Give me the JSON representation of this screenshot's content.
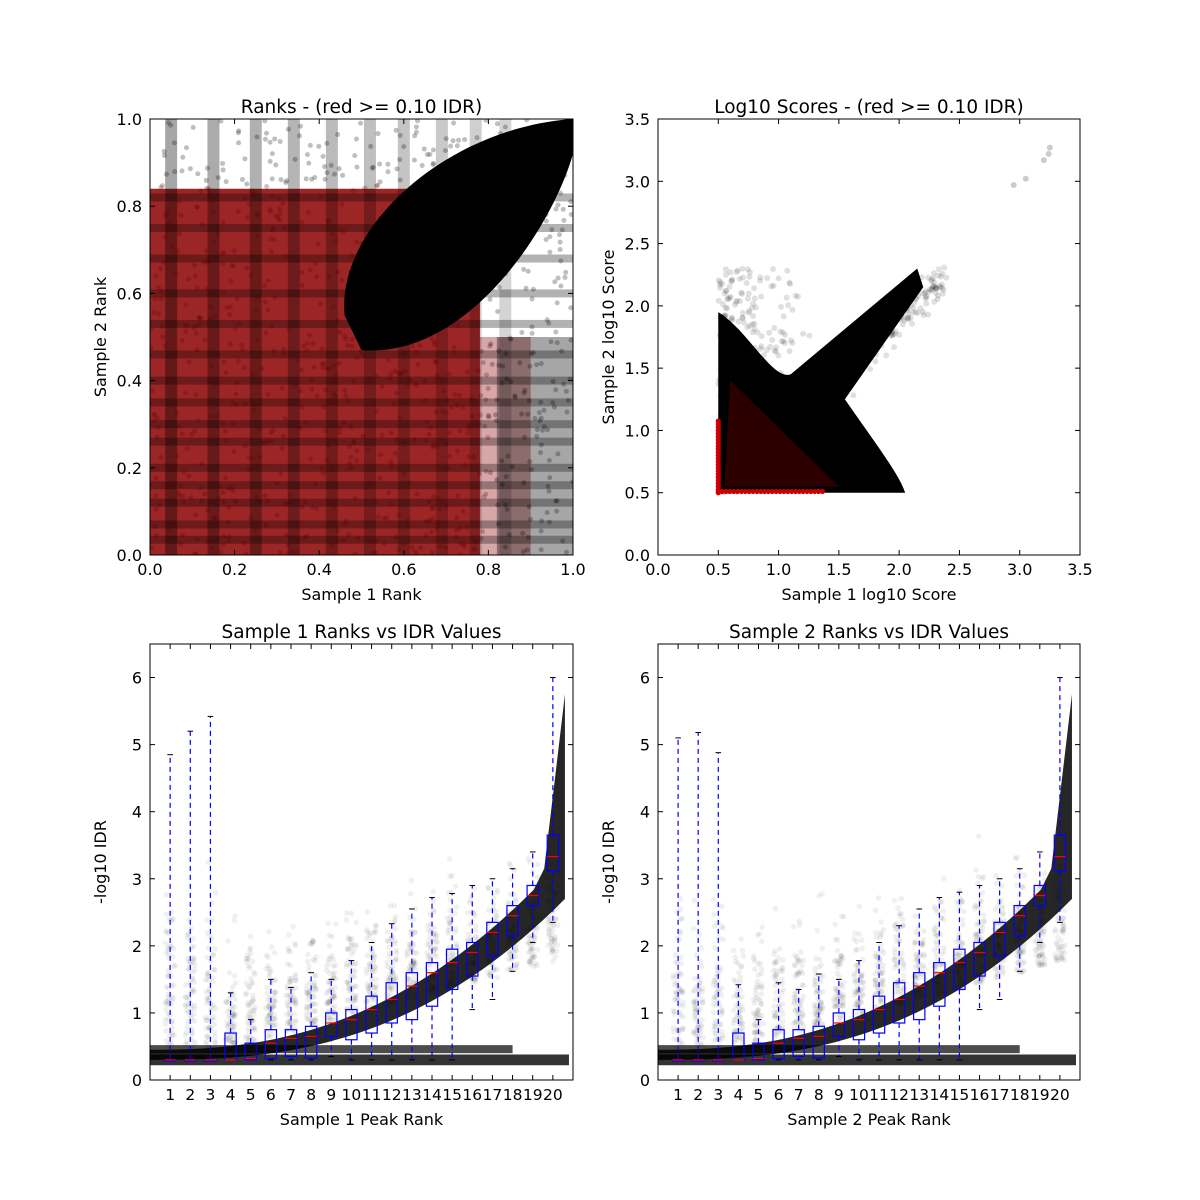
{
  "chart_data": [
    {
      "type": "scatter",
      "title": "Ranks - (red >= 0.10 IDR)",
      "xlabel": "Sample 1 Rank",
      "ylabel": "Sample 2 Rank",
      "xlim": [
        0.0,
        1.0
      ],
      "ylim": [
        0.0,
        1.0
      ],
      "xticks": [
        "0.0",
        "0.2",
        "0.4",
        "0.6",
        "0.8",
        "1.0"
      ],
      "yticks": [
        "0.0",
        "0.2",
        "0.4",
        "0.6",
        "0.8",
        "1.0"
      ],
      "colors": {
        "pass": "#000000",
        "fail": "#8b0000"
      },
      "dense_region": {
        "x": [
          0.45,
          1.0
        ],
        "y": [
          0.45,
          1.0
        ]
      }
    },
    {
      "type": "scatter",
      "title": "Log10 Scores - (red >= 0.10 IDR)",
      "xlabel": "Sample 1 log10 Score",
      "ylabel": "Sample 2 log10 Score",
      "xlim": [
        0.0,
        3.5
      ],
      "ylim": [
        0.0,
        3.5
      ],
      "xticks": [
        "0.0",
        "0.5",
        "1.0",
        "1.5",
        "2.0",
        "2.5",
        "3.0",
        "3.5"
      ],
      "yticks": [
        "0.0",
        "0.5",
        "1.0",
        "1.5",
        "2.0",
        "2.5",
        "3.0",
        "3.5"
      ],
      "colors": {
        "pass": "#000000",
        "fail": "#cc0000"
      },
      "min_score": 0.5,
      "outliers": [
        [
          2.95,
          2.97
        ],
        [
          3.05,
          3.02
        ],
        [
          3.2,
          3.17
        ],
        [
          3.24,
          3.22
        ],
        [
          3.25,
          3.27
        ]
      ]
    },
    {
      "type": "box",
      "title": "Sample 1 Ranks vs IDR Values",
      "xlabel": "Sample 1 Peak Rank",
      "ylabel": "-log10 IDR",
      "xlim": [
        0,
        21
      ],
      "ylim": [
        0,
        6.5
      ],
      "categories": [
        "1",
        "2",
        "3",
        "4",
        "5",
        "6",
        "7",
        "8",
        "9",
        "10",
        "11",
        "12",
        "13",
        "14",
        "15",
        "16",
        "17",
        "18",
        "19",
        "20"
      ],
      "yticks": [
        "0",
        "1",
        "2",
        "3",
        "4",
        "5",
        "6"
      ],
      "boxes": [
        {
          "q1": 0.3,
          "med": 0.3,
          "q3": 0.3,
          "lo": 0.3,
          "hi": 4.85
        },
        {
          "q1": 0.3,
          "med": 0.3,
          "q3": 0.3,
          "lo": 0.3,
          "hi": 5.2
        },
        {
          "q1": 0.3,
          "med": 0.3,
          "q3": 0.3,
          "lo": 0.3,
          "hi": 5.42
        },
        {
          "q1": 0.3,
          "med": 0.3,
          "q3": 0.7,
          "lo": 0.3,
          "hi": 1.3
        },
        {
          "q1": 0.3,
          "med": 0.32,
          "q3": 0.55,
          "lo": 0.3,
          "hi": 0.9
        },
        {
          "q1": 0.32,
          "med": 0.55,
          "q3": 0.75,
          "lo": 0.3,
          "hi": 1.5
        },
        {
          "q1": 0.35,
          "med": 0.62,
          "q3": 0.75,
          "lo": 0.3,
          "hi": 1.38
        },
        {
          "q1": 0.33,
          "med": 0.65,
          "q3": 0.8,
          "lo": 0.3,
          "hi": 1.6
        },
        {
          "q1": 0.65,
          "med": 0.85,
          "q3": 1.0,
          "lo": 0.35,
          "hi": 1.5
        },
        {
          "q1": 0.6,
          "med": 0.9,
          "q3": 1.05,
          "lo": 0.3,
          "hi": 1.78
        },
        {
          "q1": 0.7,
          "med": 1.05,
          "q3": 1.25,
          "lo": 0.3,
          "hi": 2.05
        },
        {
          "q1": 0.85,
          "med": 1.2,
          "q3": 1.45,
          "lo": 0.3,
          "hi": 2.33
        },
        {
          "q1": 0.9,
          "med": 1.4,
          "q3": 1.6,
          "lo": 0.3,
          "hi": 2.55
        },
        {
          "q1": 1.1,
          "med": 1.6,
          "q3": 1.75,
          "lo": 0.3,
          "hi": 2.72
        },
        {
          "q1": 1.35,
          "med": 1.75,
          "q3": 1.95,
          "lo": 0.3,
          "hi": 2.78
        },
        {
          "q1": 1.55,
          "med": 1.9,
          "q3": 2.05,
          "lo": 1.05,
          "hi": 2.9
        },
        {
          "q1": 1.85,
          "med": 2.2,
          "q3": 2.35,
          "lo": 1.2,
          "hi": 3.0
        },
        {
          "q1": 2.15,
          "med": 2.45,
          "q3": 2.6,
          "lo": 1.62,
          "hi": 3.15
        },
        {
          "q1": 2.6,
          "med": 2.75,
          "q3": 2.9,
          "lo": 2.05,
          "hi": 3.4
        },
        {
          "q1": 3.12,
          "med": 3.33,
          "q3": 3.65,
          "lo": 2.35,
          "hi": 6.0
        }
      ]
    },
    {
      "type": "box",
      "title": "Sample 2 Ranks vs IDR Values",
      "xlabel": "Sample 2 Peak Rank",
      "ylabel": "-log10 IDR",
      "xlim": [
        0,
        21
      ],
      "ylim": [
        0,
        6.5
      ],
      "categories": [
        "1",
        "2",
        "3",
        "4",
        "5",
        "6",
        "7",
        "8",
        "9",
        "10",
        "11",
        "12",
        "13",
        "14",
        "15",
        "16",
        "17",
        "18",
        "19",
        "20"
      ],
      "yticks": [
        "0",
        "1",
        "2",
        "3",
        "4",
        "5",
        "6"
      ],
      "boxes": [
        {
          "q1": 0.3,
          "med": 0.3,
          "q3": 0.3,
          "lo": 0.3,
          "hi": 5.1
        },
        {
          "q1": 0.3,
          "med": 0.3,
          "q3": 0.3,
          "lo": 0.3,
          "hi": 5.18
        },
        {
          "q1": 0.3,
          "med": 0.3,
          "q3": 0.3,
          "lo": 0.3,
          "hi": 4.88
        },
        {
          "q1": 0.3,
          "med": 0.3,
          "q3": 0.7,
          "lo": 0.3,
          "hi": 1.42
        },
        {
          "q1": 0.3,
          "med": 0.32,
          "q3": 0.55,
          "lo": 0.3,
          "hi": 0.9
        },
        {
          "q1": 0.32,
          "med": 0.55,
          "q3": 0.75,
          "lo": 0.3,
          "hi": 1.45
        },
        {
          "q1": 0.35,
          "med": 0.62,
          "q3": 0.75,
          "lo": 0.3,
          "hi": 1.35
        },
        {
          "q1": 0.33,
          "med": 0.65,
          "q3": 0.8,
          "lo": 0.3,
          "hi": 1.58
        },
        {
          "q1": 0.65,
          "med": 0.85,
          "q3": 1.0,
          "lo": 0.35,
          "hi": 1.5
        },
        {
          "q1": 0.6,
          "med": 0.9,
          "q3": 1.05,
          "lo": 0.3,
          "hi": 1.78
        },
        {
          "q1": 0.7,
          "med": 1.05,
          "q3": 1.25,
          "lo": 0.3,
          "hi": 2.05
        },
        {
          "q1": 0.85,
          "med": 1.2,
          "q3": 1.45,
          "lo": 0.3,
          "hi": 2.3
        },
        {
          "q1": 0.9,
          "med": 1.4,
          "q3": 1.6,
          "lo": 0.3,
          "hi": 2.55
        },
        {
          "q1": 1.1,
          "med": 1.6,
          "q3": 1.75,
          "lo": 0.3,
          "hi": 2.72
        },
        {
          "q1": 1.35,
          "med": 1.75,
          "q3": 1.95,
          "lo": 0.3,
          "hi": 2.8
        },
        {
          "q1": 1.55,
          "med": 1.9,
          "q3": 2.05,
          "lo": 1.05,
          "hi": 2.9
        },
        {
          "q1": 1.85,
          "med": 2.2,
          "q3": 2.35,
          "lo": 1.2,
          "hi": 3.0
        },
        {
          "q1": 2.15,
          "med": 2.45,
          "q3": 2.6,
          "lo": 1.62,
          "hi": 3.15
        },
        {
          "q1": 2.6,
          "med": 2.75,
          "q3": 2.9,
          "lo": 2.05,
          "hi": 3.4
        },
        {
          "q1": 3.12,
          "med": 3.33,
          "q3": 3.65,
          "lo": 2.35,
          "hi": 6.0
        }
      ]
    }
  ]
}
